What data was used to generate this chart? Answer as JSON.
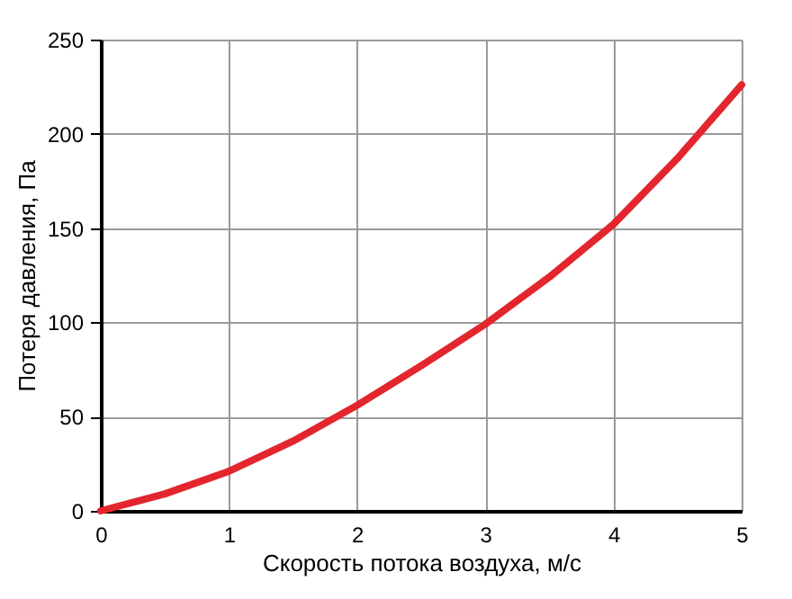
{
  "chart_data": {
    "type": "line",
    "xlabel": "Скорость потока воздуха, м/с",
    "ylabel": "Потеря давления, Па",
    "x": [
      0,
      0.5,
      1,
      1.5,
      2,
      2.5,
      3,
      3.5,
      4,
      4.5,
      5
    ],
    "series": [
      {
        "color": "#e3262d",
        "values": [
          0,
          9,
          21,
          37,
          56,
          77,
          99,
          124,
          152,
          187,
          226
        ]
      }
    ],
    "xlim": [
      0,
      5
    ],
    "xticks": [
      0,
      1,
      2,
      3,
      4,
      5
    ],
    "ylim": [
      0,
      250
    ],
    "yticks": [
      0,
      50,
      100,
      150,
      200,
      250
    ],
    "grid": true,
    "marker": "none",
    "line_style": "solid"
  }
}
